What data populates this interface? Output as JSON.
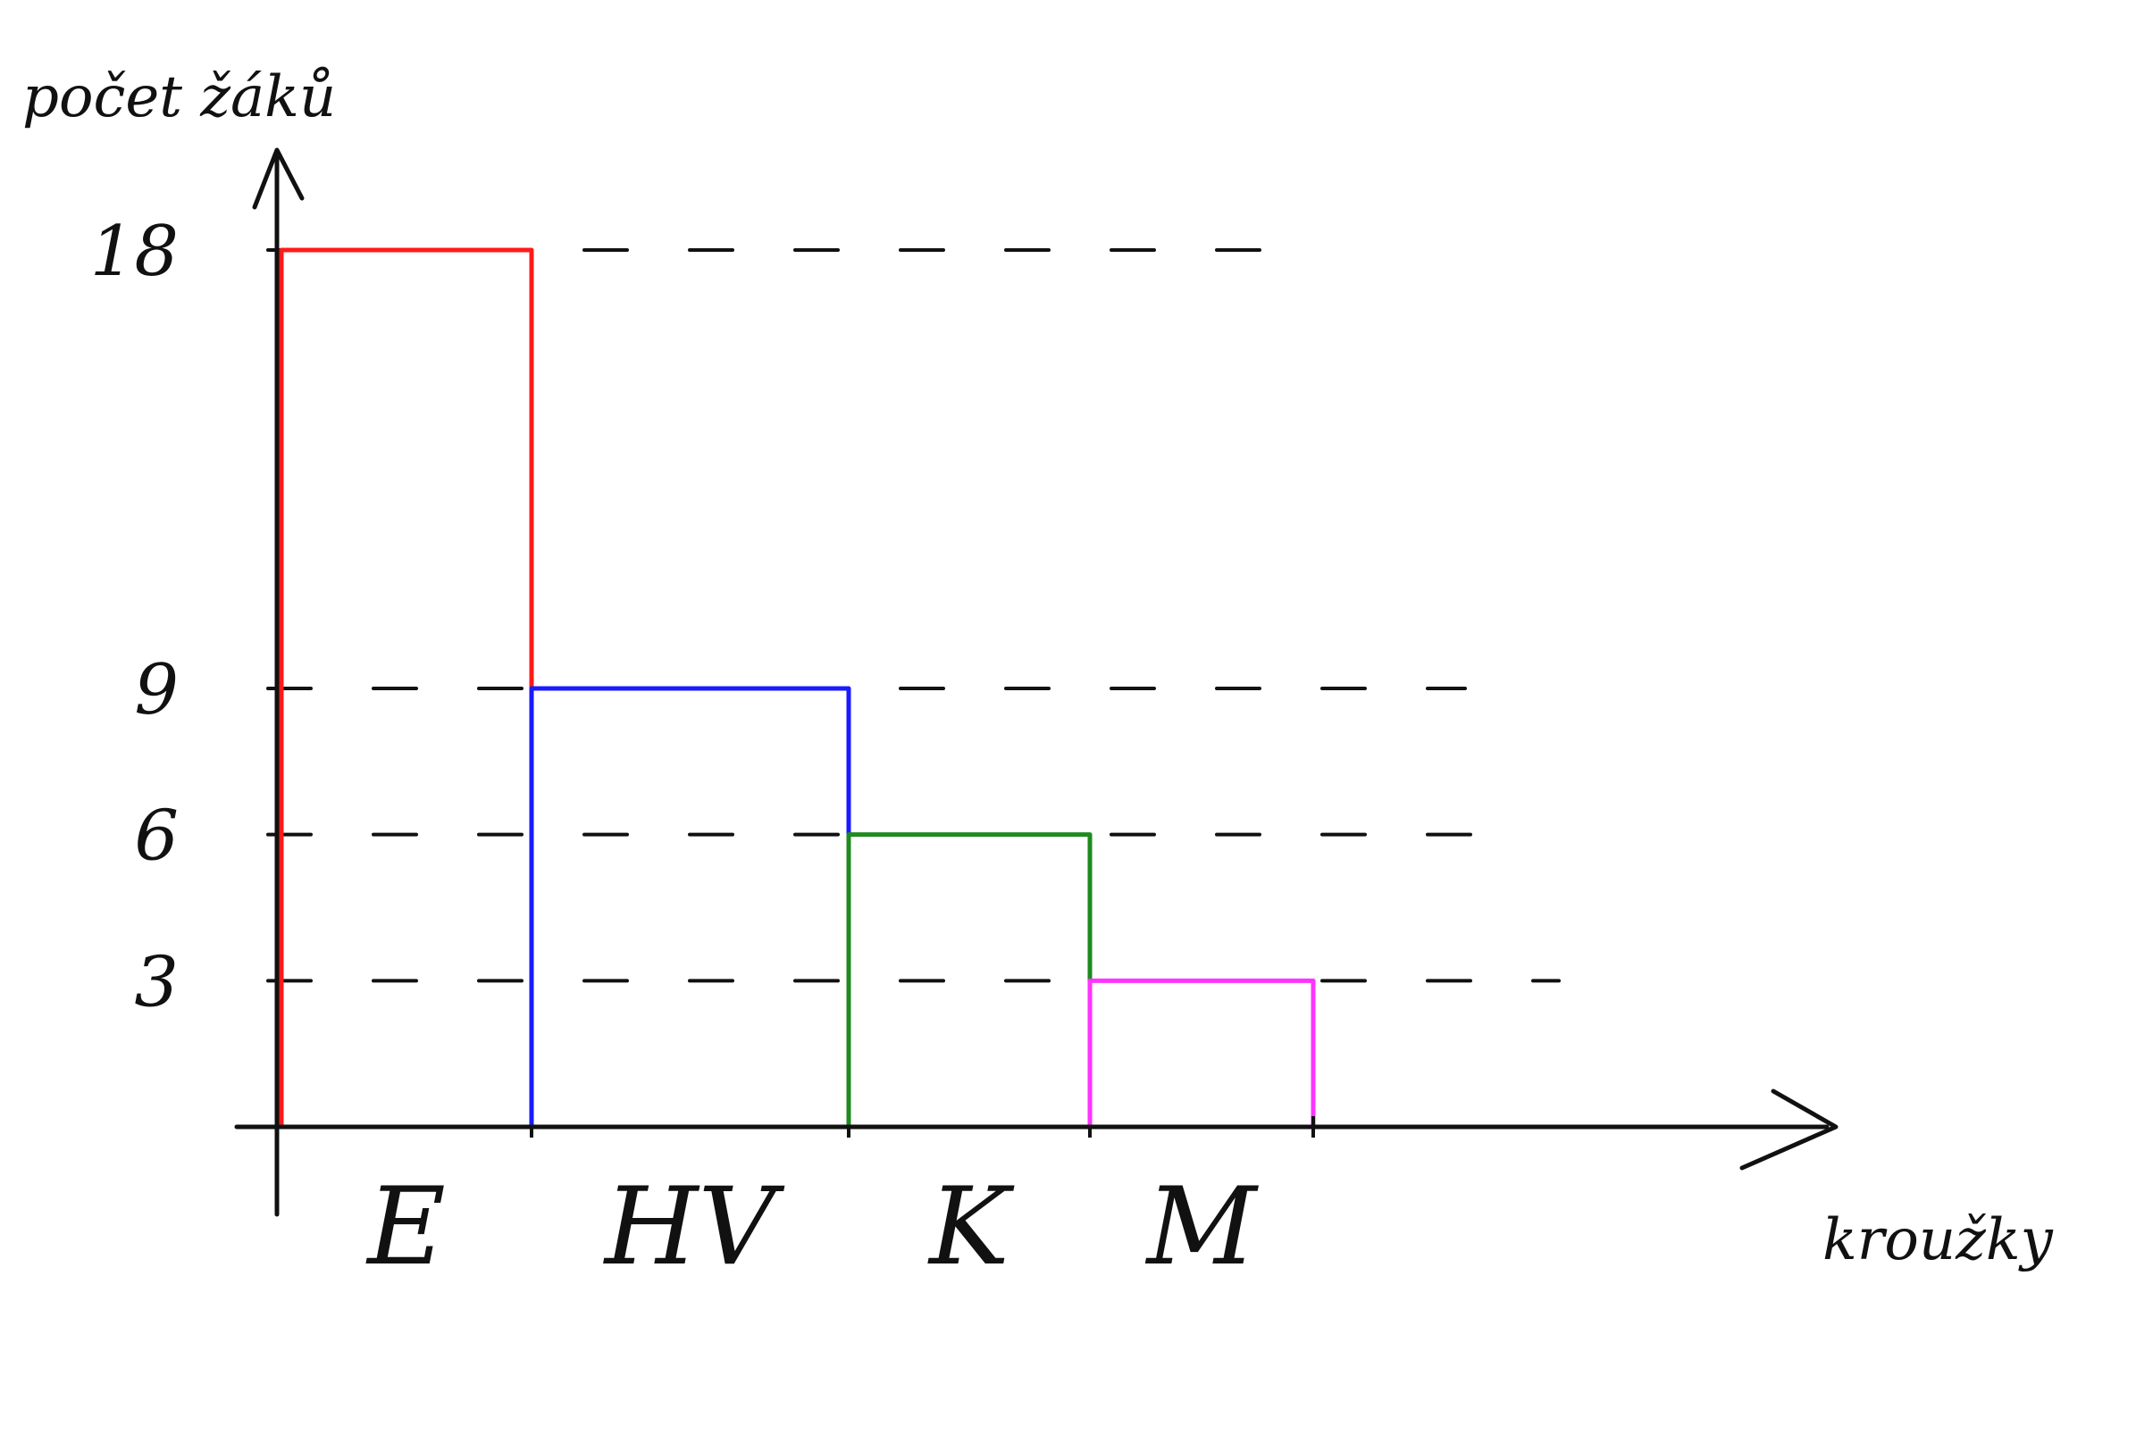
{
  "chart_data": {
    "type": "bar",
    "title": "",
    "ylabel": "počet žáků",
    "xlabel": "kroužky",
    "categories": [
      "E",
      "HV",
      "K",
      "M"
    ],
    "values": [
      18,
      9,
      6,
      3
    ],
    "yticks": [
      3,
      6,
      9,
      18
    ],
    "ylim": [
      0,
      18
    ],
    "grid": true,
    "grid_style": "dashed",
    "legend": "none",
    "colors": [
      "#ff1a1a",
      "#1a1aff",
      "#1f8a1f",
      "#ff33ff"
    ],
    "axis_color": "#111111"
  }
}
